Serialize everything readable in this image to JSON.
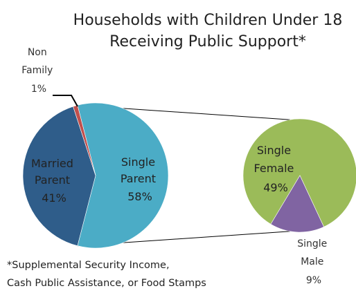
{
  "chart_data": {
    "type": "pie",
    "title": [
      "Households with Children Under 18",
      "Receiving Public Support*"
    ],
    "main_pie": {
      "slices": [
        {
          "label": [
            "Single",
            "Parent"
          ],
          "value": 58,
          "value_label": "58%",
          "color": "#4bacc6"
        },
        {
          "label": [
            "Married",
            "Parent"
          ],
          "value": 41,
          "value_label": "41%",
          "color": "#2f5d8a"
        },
        {
          "label": [
            "Non",
            "Family"
          ],
          "value": 1,
          "value_label": "1%",
          "color": "#c0504d"
        }
      ]
    },
    "secondary_pie": {
      "of_slice": "Single Parent",
      "slices": [
        {
          "label": [
            "Single",
            "Female"
          ],
          "value": 49,
          "value_label": "49%",
          "color": "#9bbb59"
        },
        {
          "label": [
            "Single",
            "Male"
          ],
          "value": 9,
          "value_label": "9%",
          "color": "#8064a2"
        }
      ]
    },
    "footnote": [
      "*Supplemental Security Income,",
      "Cash Public Assistance, or Food Stamps"
    ]
  }
}
